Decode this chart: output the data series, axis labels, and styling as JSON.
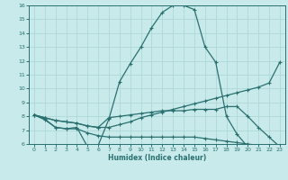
{
  "xlabel": "Humidex (Indice chaleur)",
  "bg_color": "#c8eaea",
  "grid_color": "#afd8d8",
  "line_color": "#2a7070",
  "xlim": [
    -0.5,
    23.5
  ],
  "ylim": [
    6,
    16
  ],
  "xticks": [
    0,
    1,
    2,
    3,
    4,
    5,
    6,
    7,
    8,
    9,
    10,
    11,
    12,
    13,
    14,
    15,
    16,
    17,
    18,
    19,
    20,
    21,
    22,
    23
  ],
  "yticks": [
    6,
    7,
    8,
    9,
    10,
    11,
    12,
    13,
    14,
    15,
    16
  ],
  "line1_x": [
    0,
    1,
    2,
    3,
    4,
    5,
    6,
    7,
    8,
    9,
    10,
    11,
    12,
    13,
    14,
    15,
    16,
    17,
    18,
    19,
    20,
    21,
    22
  ],
  "line1_y": [
    8.1,
    7.75,
    7.2,
    7.1,
    7.2,
    5.8,
    5.9,
    7.8,
    10.5,
    11.8,
    13.0,
    14.4,
    15.5,
    16.0,
    16.0,
    15.7,
    13.0,
    11.9,
    8.0,
    6.7,
    5.8,
    5.9,
    5.9
  ],
  "line2_x": [
    0,
    1,
    2,
    3,
    4,
    5,
    6,
    7,
    8,
    9,
    10,
    11,
    12,
    13,
    14,
    15,
    16,
    17,
    18,
    19,
    20,
    21,
    22,
    23
  ],
  "line2_y": [
    8.1,
    7.9,
    7.7,
    7.6,
    7.5,
    7.3,
    7.2,
    7.2,
    7.4,
    7.6,
    7.9,
    8.1,
    8.3,
    8.5,
    8.7,
    8.9,
    9.1,
    9.3,
    9.5,
    9.7,
    9.9,
    10.1,
    10.4,
    11.9
  ],
  "line3_x": [
    0,
    1,
    2,
    3,
    4,
    5,
    6,
    7,
    8,
    9,
    10,
    11,
    12,
    13,
    14,
    15,
    16,
    17,
    18,
    19,
    20,
    21,
    22,
    23
  ],
  "line3_y": [
    8.1,
    7.8,
    7.2,
    7.1,
    7.1,
    6.8,
    6.6,
    6.5,
    6.5,
    6.5,
    6.5,
    6.5,
    6.5,
    6.5,
    6.5,
    6.5,
    6.4,
    6.3,
    6.2,
    6.1,
    6.0,
    5.9,
    5.8,
    5.8
  ],
  "line4_x": [
    0,
    1,
    2,
    3,
    4,
    5,
    6,
    7,
    8,
    9,
    10,
    11,
    12,
    13,
    14,
    15,
    16,
    17,
    18,
    19,
    20,
    21,
    22,
    23
  ],
  "line4_y": [
    8.1,
    7.9,
    7.7,
    7.6,
    7.5,
    7.3,
    7.2,
    7.9,
    8.0,
    8.1,
    8.2,
    8.3,
    8.4,
    8.4,
    8.4,
    8.5,
    8.5,
    8.5,
    8.7,
    8.7,
    8.0,
    7.2,
    6.5,
    5.8
  ]
}
